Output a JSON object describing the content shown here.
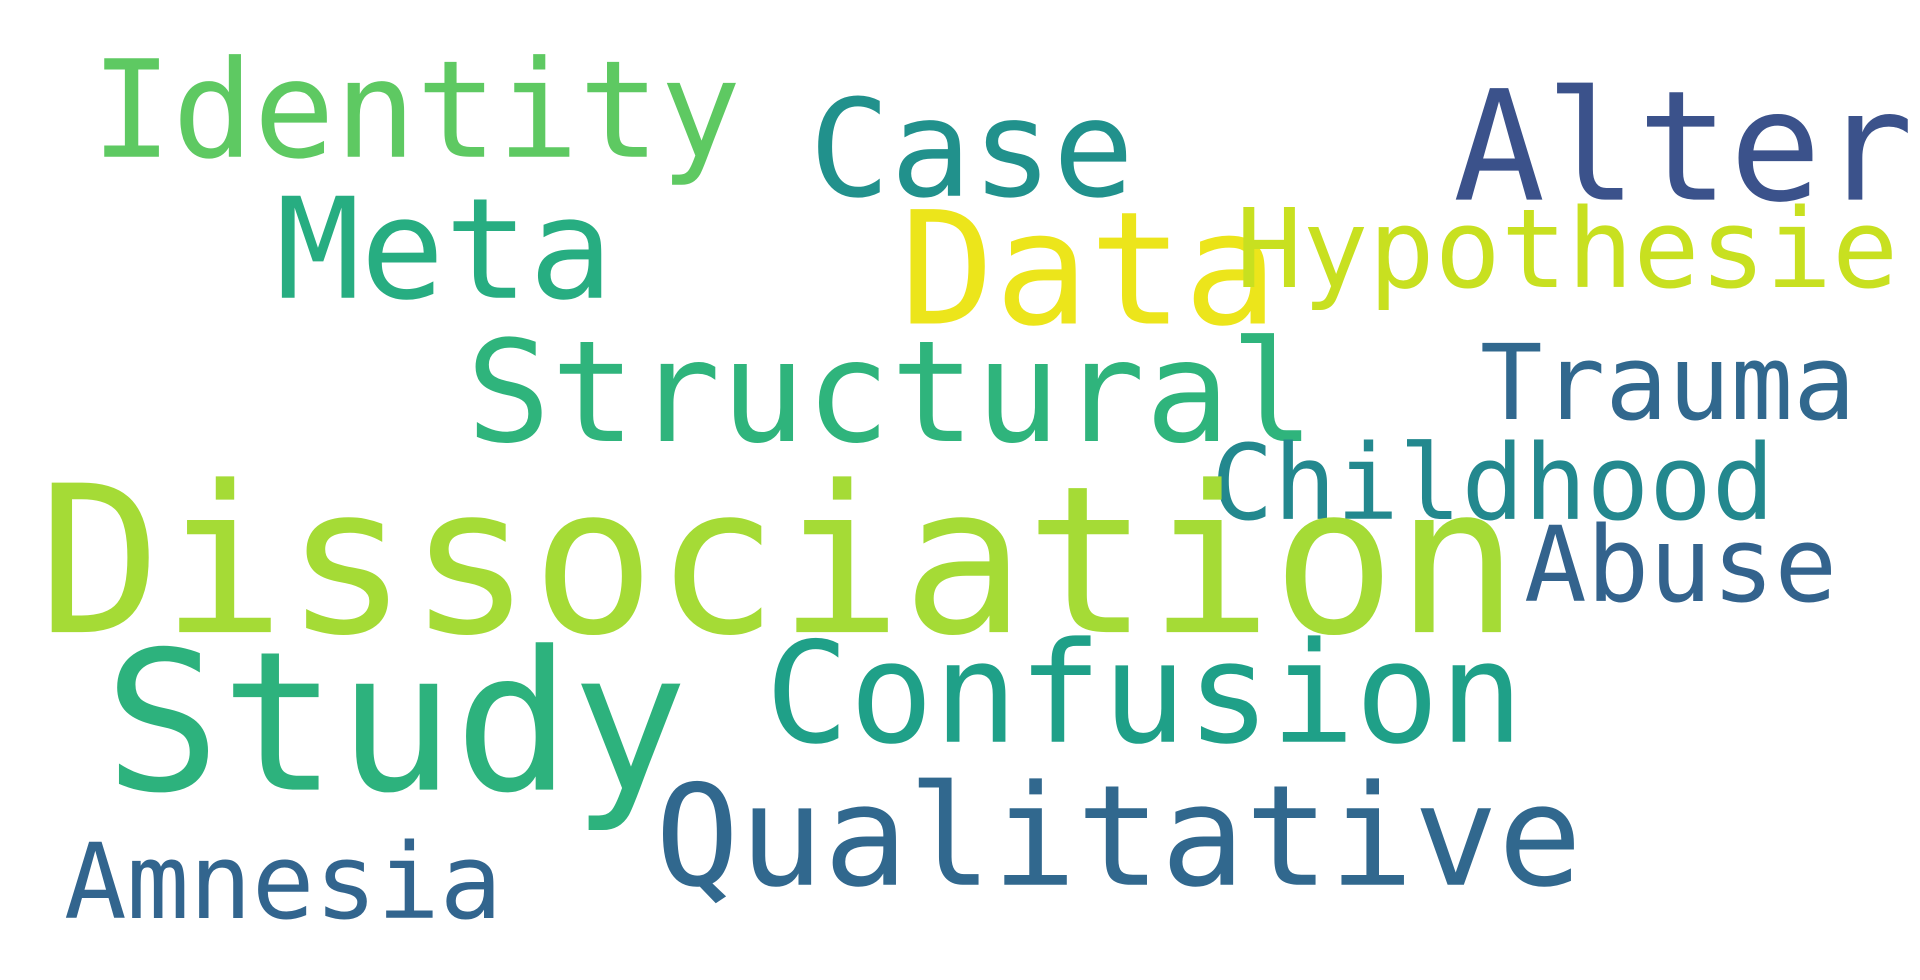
{
  "word_cloud": {
    "background_color": "#ffffff",
    "words": [
      {
        "id": "identity",
        "text": "Identity",
        "color": "#5ec962"
      },
      {
        "id": "case",
        "text": "Case",
        "color": "#21918c"
      },
      {
        "id": "alter",
        "text": "Alter",
        "color": "#3b528b"
      },
      {
        "id": "meta",
        "text": "Meta",
        "color": "#27ad81"
      },
      {
        "id": "data",
        "text": "Data",
        "color": "#ece51b"
      },
      {
        "id": "hypothesie",
        "text": "Hypothesie",
        "color": "#c8e020"
      },
      {
        "id": "structural",
        "text": "Structural",
        "color": "#2fb47c"
      },
      {
        "id": "trauma",
        "text": "Trauma",
        "color": "#31688e"
      },
      {
        "id": "childhood",
        "text": "Childhood",
        "color": "#23888e"
      },
      {
        "id": "dissociation",
        "text": "Dissociation",
        "color": "#a5db36"
      },
      {
        "id": "abuse",
        "text": "Abuse",
        "color": "#33638d"
      },
      {
        "id": "study",
        "text": "Study",
        "color": "#2db27d"
      },
      {
        "id": "confusion",
        "text": "Confusion",
        "color": "#1fa088"
      },
      {
        "id": "qualitative",
        "text": "Qualitative",
        "color": "#31688e"
      },
      {
        "id": "amnesia",
        "text": "Amnesia",
        "color": "#32658e"
      }
    ]
  }
}
